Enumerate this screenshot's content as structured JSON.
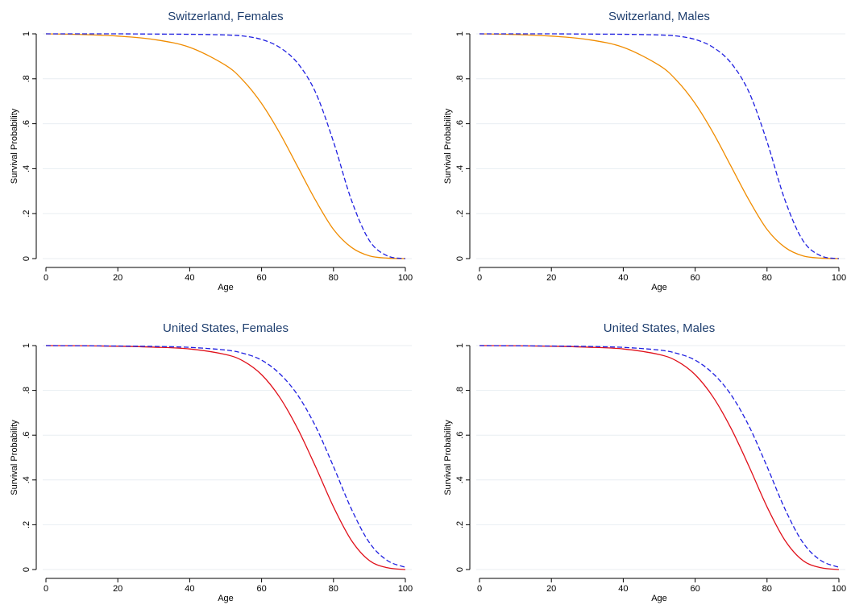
{
  "colors": {
    "title": "#1f3f6f",
    "grid": "#e8eef2",
    "dashed_series": "#1f1fe0",
    "swiss_series": "#f08c00",
    "us_series": "#e0101a"
  },
  "chart_data": [
    {
      "type": "line",
      "title": "Switzerland, Females",
      "xlabel": "Age",
      "ylabel": "Survival Probability",
      "xlim": [
        0,
        100
      ],
      "ylim": [
        0,
        1
      ],
      "x_ticks": [
        0,
        20,
        40,
        60,
        80,
        100
      ],
      "y_ticks": [
        "0",
        ".2",
        ".4",
        ".6",
        ".8",
        "1"
      ],
      "grid": true,
      "x": [
        0,
        10,
        20,
        30,
        40,
        50,
        55,
        60,
        65,
        70,
        75,
        80,
        85,
        90,
        95,
        100
      ],
      "series": [
        {
          "style": "solid",
          "color": "#f08c00",
          "values": [
            1.0,
            0.997,
            0.99,
            0.975,
            0.94,
            0.86,
            0.79,
            0.69,
            0.56,
            0.41,
            0.26,
            0.13,
            0.05,
            0.012,
            0.002,
            0.0
          ]
        },
        {
          "style": "dashed",
          "color": "#1f1fe0",
          "values": [
            1.0,
            1.0,
            1.0,
            0.999,
            0.998,
            0.995,
            0.99,
            0.975,
            0.94,
            0.87,
            0.74,
            0.52,
            0.26,
            0.08,
            0.012,
            0.0
          ]
        }
      ]
    },
    {
      "type": "line",
      "title": "Switzerland, Males",
      "xlabel": "Age",
      "ylabel": "Survival Probability",
      "xlim": [
        0,
        100
      ],
      "ylim": [
        0,
        1
      ],
      "x_ticks": [
        0,
        20,
        40,
        60,
        80,
        100
      ],
      "y_ticks": [
        "0",
        ".2",
        ".4",
        ".6",
        ".8",
        "1"
      ],
      "grid": true,
      "x": [
        0,
        10,
        20,
        30,
        40,
        50,
        55,
        60,
        65,
        70,
        75,
        80,
        85,
        90,
        95,
        100
      ],
      "series": [
        {
          "style": "solid",
          "color": "#f08c00",
          "values": [
            1.0,
            0.997,
            0.99,
            0.975,
            0.94,
            0.86,
            0.79,
            0.69,
            0.56,
            0.41,
            0.26,
            0.13,
            0.05,
            0.012,
            0.002,
            0.0
          ]
        },
        {
          "style": "dashed",
          "color": "#1f1fe0",
          "values": [
            1.0,
            1.0,
            1.0,
            0.999,
            0.998,
            0.995,
            0.99,
            0.975,
            0.94,
            0.87,
            0.74,
            0.52,
            0.26,
            0.08,
            0.012,
            0.0
          ]
        }
      ]
    },
    {
      "type": "line",
      "title": "United States, Females",
      "xlabel": "Age",
      "ylabel": "Survival Probability",
      "xlim": [
        0,
        100
      ],
      "ylim": [
        0,
        1
      ],
      "x_ticks": [
        0,
        20,
        40,
        60,
        80,
        100
      ],
      "y_ticks": [
        "0",
        ".2",
        ".4",
        ".6",
        ".8",
        "1"
      ],
      "grid": true,
      "x": [
        0,
        10,
        20,
        30,
        40,
        50,
        55,
        60,
        65,
        70,
        75,
        80,
        85,
        90,
        95,
        100
      ],
      "series": [
        {
          "style": "solid",
          "color": "#e0101a",
          "values": [
            1.0,
            0.999,
            0.997,
            0.993,
            0.985,
            0.96,
            0.93,
            0.87,
            0.77,
            0.63,
            0.46,
            0.28,
            0.13,
            0.04,
            0.008,
            0.0
          ]
        },
        {
          "style": "dashed",
          "color": "#1f1fe0",
          "values": [
            1.0,
            0.999,
            0.998,
            0.996,
            0.992,
            0.98,
            0.965,
            0.935,
            0.875,
            0.78,
            0.64,
            0.46,
            0.27,
            0.12,
            0.04,
            0.01
          ]
        }
      ]
    },
    {
      "type": "line",
      "title": "United States, Males",
      "xlabel": "Age",
      "ylabel": "Survival Probability",
      "xlim": [
        0,
        100
      ],
      "ylim": [
        0,
        1
      ],
      "x_ticks": [
        0,
        20,
        40,
        60,
        80,
        100
      ],
      "y_ticks": [
        "0",
        ".2",
        ".4",
        ".6",
        ".8",
        "1"
      ],
      "grid": true,
      "x": [
        0,
        10,
        20,
        30,
        40,
        50,
        55,
        60,
        65,
        70,
        75,
        80,
        85,
        90,
        95,
        100
      ],
      "series": [
        {
          "style": "solid",
          "color": "#e0101a",
          "values": [
            1.0,
            0.999,
            0.997,
            0.993,
            0.985,
            0.96,
            0.93,
            0.87,
            0.77,
            0.63,
            0.46,
            0.28,
            0.13,
            0.04,
            0.008,
            0.0
          ]
        },
        {
          "style": "dashed",
          "color": "#1f1fe0",
          "values": [
            1.0,
            0.999,
            0.998,
            0.996,
            0.992,
            0.98,
            0.965,
            0.935,
            0.875,
            0.78,
            0.64,
            0.46,
            0.27,
            0.12,
            0.04,
            0.01
          ]
        }
      ]
    }
  ]
}
